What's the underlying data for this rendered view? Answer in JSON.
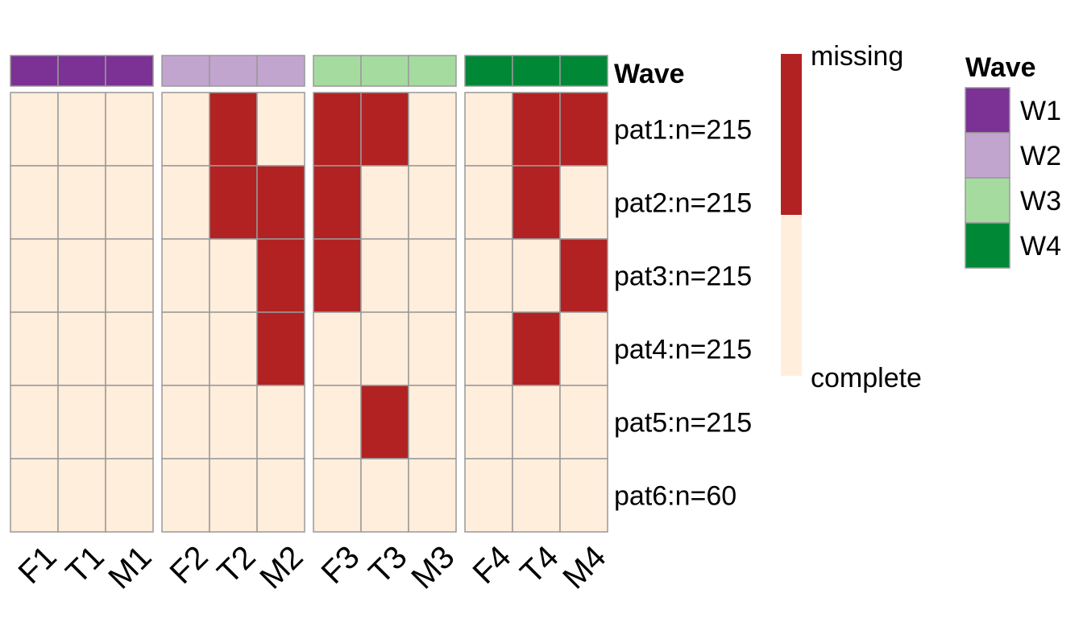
{
  "chart_data": {
    "type": "heatmap",
    "rows": [
      "pat1:n=215",
      "pat2:n=215",
      "pat3:n=215",
      "pat4:n=215",
      "pat5:n=215",
      "pat6:n=60"
    ],
    "columns": [
      "F1",
      "T1",
      "M1",
      "F2",
      "T2",
      "M2",
      "F3",
      "T3",
      "M3",
      "F4",
      "T4",
      "M4"
    ],
    "column_groups": [
      {
        "name": "W1",
        "columns": [
          "F1",
          "T1",
          "M1"
        ]
      },
      {
        "name": "W2",
        "columns": [
          "F2",
          "T2",
          "M2"
        ]
      },
      {
        "name": "W3",
        "columns": [
          "F3",
          "T3",
          "M3"
        ]
      },
      {
        "name": "W4",
        "columns": [
          "F4",
          "T4",
          "M4"
        ]
      }
    ],
    "annotation_label": "Wave",
    "values": [
      [
        0,
        0,
        0,
        0,
        1,
        0,
        1,
        1,
        0,
        0,
        1,
        1
      ],
      [
        0,
        0,
        0,
        0,
        1,
        1,
        1,
        0,
        0,
        0,
        1,
        0
      ],
      [
        0,
        0,
        0,
        0,
        0,
        1,
        1,
        0,
        0,
        0,
        0,
        1
      ],
      [
        0,
        0,
        0,
        0,
        0,
        1,
        0,
        0,
        0,
        0,
        1,
        0
      ],
      [
        0,
        0,
        0,
        0,
        0,
        0,
        0,
        1,
        0,
        0,
        0,
        0
      ],
      [
        0,
        0,
        0,
        0,
        0,
        0,
        0,
        0,
        0,
        0,
        0,
        0
      ]
    ],
    "value_legend": {
      "missing_label": "missing",
      "complete_label": "complete",
      "missing_color": "#B22222",
      "complete_color": "#FFEEDC"
    },
    "wave_legend": {
      "title": "Wave",
      "entries": [
        {
          "label": "W1",
          "color": "#7B3294"
        },
        {
          "label": "W2",
          "color": "#C2A5CF"
        },
        {
          "label": "W3",
          "color": "#A6DBA0"
        },
        {
          "label": "W4",
          "color": "#008837"
        }
      ]
    },
    "grid_color": "#999999"
  }
}
